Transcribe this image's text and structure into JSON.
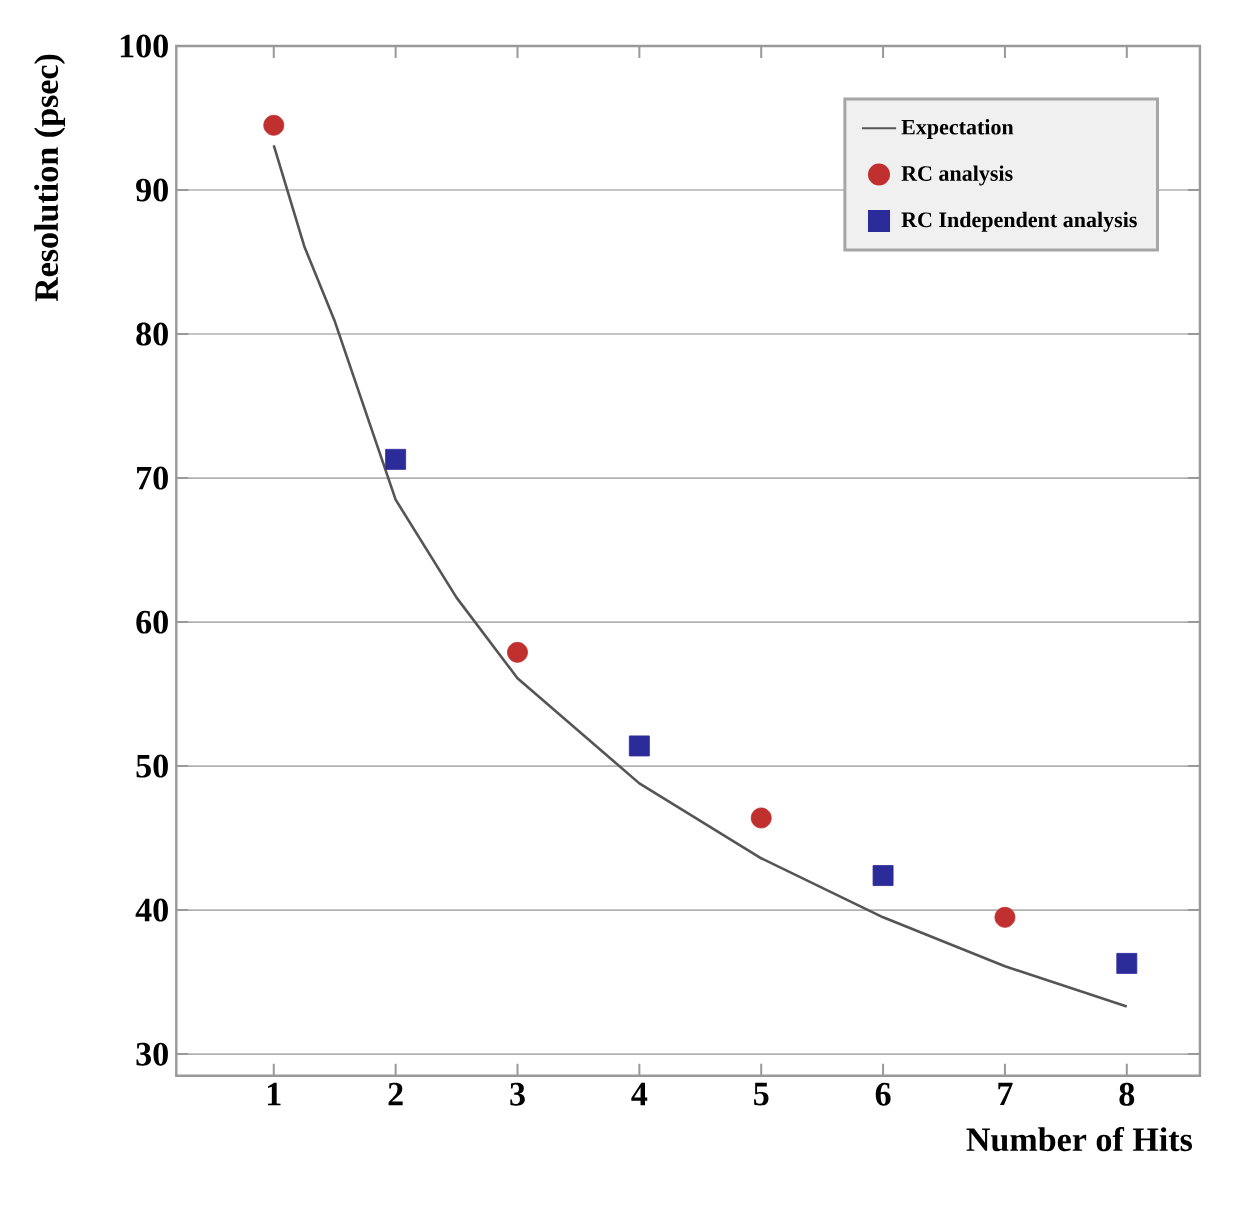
{
  "chart_data": {
    "type": "scatter",
    "xlabel": "Number of Hits",
    "ylabel": "Resolution (psec)",
    "xlim": [
      0.2,
      8.6
    ],
    "xticks": [
      1,
      2,
      3,
      4,
      5,
      6,
      7,
      8
    ],
    "ylim": [
      28.5,
      100
    ],
    "yticks": [
      30,
      40,
      50,
      60,
      70,
      80,
      90,
      100
    ],
    "grid": "y",
    "legend": "top right",
    "series": [
      {
        "name": "Expectation",
        "type": "line",
        "color": "#555555",
        "marker": "none",
        "line_style": "solid",
        "x": [
          1,
          1.25,
          1.5,
          2,
          2.5,
          3,
          4,
          5,
          6,
          7,
          8
        ],
        "values": [
          93.1,
          86.1,
          80.9,
          68.5,
          61.7,
          56.1,
          48.8,
          43.6,
          39.5,
          36.1,
          33.3
        ]
      },
      {
        "name": "RC analysis",
        "color": "#c0302f",
        "marker": "circle",
        "x": [
          1,
          3,
          5,
          7
        ],
        "values": [
          94.5,
          57.9,
          46.4,
          39.5
        ]
      },
      {
        "name": "RC Independent analysis",
        "color": "#2b2b9a",
        "marker": "square",
        "x": [
          2,
          4,
          6,
          8
        ],
        "values": [
          71.3,
          51.4,
          42.4,
          36.3
        ]
      }
    ]
  }
}
